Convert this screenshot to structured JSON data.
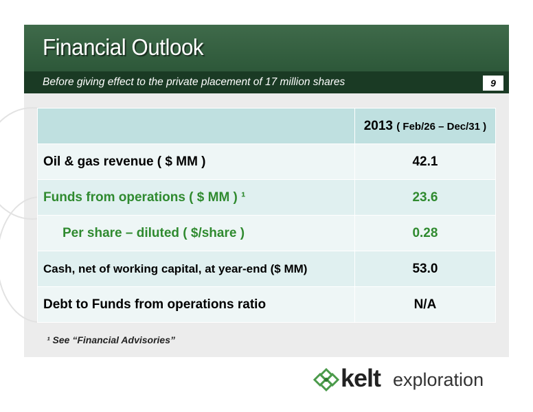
{
  "header": {
    "title": "Financial Outlook",
    "subtitle": "Before giving effect to the private placement of 17 million shares",
    "page_number": "9"
  },
  "table": {
    "column_header": {
      "year": "2013",
      "range": "( Feb/26 – Dec/31 )"
    },
    "rows": [
      {
        "label": "Oil & gas revenue ( $ MM )",
        "value": "42.1"
      },
      {
        "label": "Funds from operations ( $ MM ) ¹",
        "value": "23.6"
      },
      {
        "label": "Per share – diluted ( $/share )",
        "value": "0.28"
      },
      {
        "label": "Cash, net of working capital, at year-end ($ MM)",
        "value": "53.0"
      },
      {
        "label": "Debt to Funds from operations ratio",
        "value": "N/A"
      }
    ]
  },
  "footnote": "¹ See “Financial Advisories”",
  "logo": {
    "brand": "kelt",
    "suffix": "exploration",
    "icon": "celtic-knot-icon"
  },
  "colors": {
    "header_green": "#2f5a3b",
    "accent_green": "#2f8a2f",
    "table_header": "#bfe0e0",
    "row_light": "#eef6f6",
    "row_dark": "#e0f0f0"
  }
}
